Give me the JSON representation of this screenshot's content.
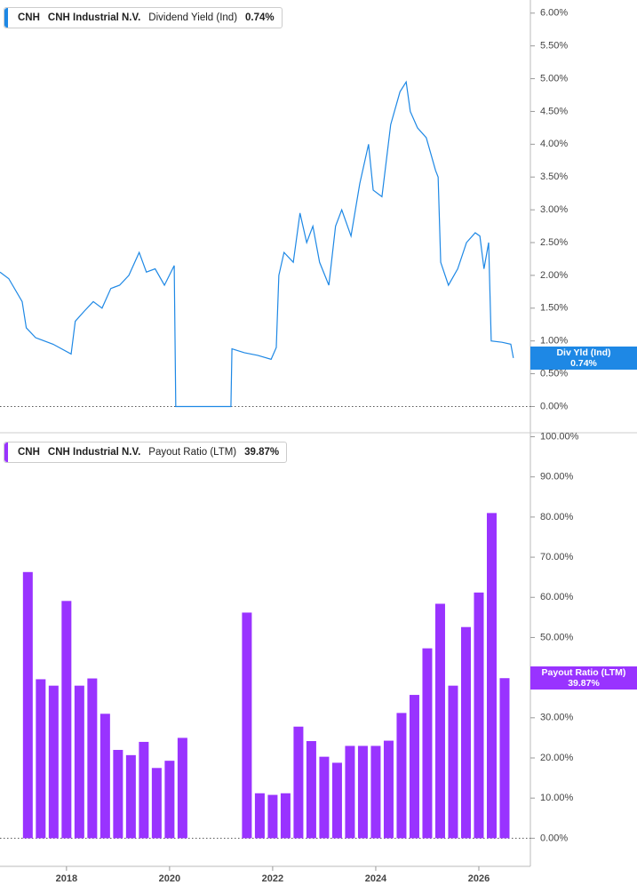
{
  "chart_data": [
    {
      "type": "line",
      "color": "#1e88e5",
      "legend": {
        "ticker": "CNH",
        "name": "CNH Industrial N.V.",
        "metric": "Dividend Yield (Ind)"
      },
      "tag": "Div Yld (Ind)",
      "current": {
        "value": 0.74,
        "label": "0.74%"
      },
      "x": [
        2016.71,
        2016.88,
        2017.14,
        2017.22,
        2017.4,
        2017.74,
        2018.09,
        2018.17,
        2018.34,
        2018.52,
        2018.69,
        2018.86,
        2019.03,
        2019.21,
        2019.41,
        2019.55,
        2019.72,
        2019.9,
        2020.09,
        2020.12,
        2021.19,
        2021.21,
        2021.45,
        2021.71,
        2021.97,
        2022.07,
        2022.12,
        2022.22,
        2022.4,
        2022.53,
        2022.66,
        2022.78,
        2022.91,
        2023.09,
        2023.22,
        2023.34,
        2023.52,
        2023.69,
        2023.86,
        2023.95,
        2024.12,
        2024.29,
        2024.47,
        2024.59,
        2024.67,
        2024.81,
        2024.98,
        2025.16,
        2025.21,
        2025.26,
        2025.41,
        2025.59,
        2025.76,
        2025.93,
        2026.02,
        2026.1,
        2026.19,
        2026.24,
        2026.45,
        2026.62,
        2026.67
      ],
      "values": [
        2.05,
        1.95,
        1.6,
        1.2,
        1.05,
        0.95,
        0.8,
        1.3,
        1.45,
        1.6,
        1.5,
        1.8,
        1.85,
        2.0,
        2.35,
        2.05,
        2.1,
        1.85,
        2.15,
        0.0,
        0.0,
        0.88,
        0.82,
        0.78,
        0.72,
        0.9,
        2.0,
        2.35,
        2.2,
        2.95,
        2.5,
        2.75,
        2.2,
        1.85,
        2.75,
        3.0,
        2.6,
        3.4,
        4.0,
        3.3,
        3.2,
        4.3,
        4.8,
        4.95,
        4.5,
        4.25,
        4.1,
        3.6,
        3.5,
        2.2,
        1.85,
        2.1,
        2.5,
        2.65,
        2.6,
        2.1,
        2.5,
        1.0,
        0.98,
        0.95,
        0.74
      ],
      "xlim": [
        2016.71,
        2027.0
      ],
      "ylim": [
        -0.4,
        6.2
      ],
      "yticks": [
        {
          "value": 0,
          "label": "0.00%"
        },
        {
          "value": 0.5,
          "label": "0.50%"
        },
        {
          "value": 1,
          "label": "1.00%"
        },
        {
          "value": 1.5,
          "label": "1.50%"
        },
        {
          "value": 2,
          "label": "2.00%"
        },
        {
          "value": 2.5,
          "label": "2.50%"
        },
        {
          "value": 3,
          "label": "3.00%"
        },
        {
          "value": 3.5,
          "label": "3.50%"
        },
        {
          "value": 4,
          "label": "4.00%"
        },
        {
          "value": 4.5,
          "label": "4.50%"
        },
        {
          "value": 5,
          "label": "5.00%"
        },
        {
          "value": 5.5,
          "label": "5.50%"
        },
        {
          "value": 6,
          "label": "6.00%"
        }
      ]
    },
    {
      "type": "bar",
      "color": "#9933ff",
      "legend": {
        "ticker": "CNH",
        "name": "CNH Industrial N.V.",
        "metric": "Payout Ratio (LTM)"
      },
      "tag": "Payout Ratio (LTM)",
      "current": {
        "value": 39.87,
        "label": "39.87%"
      },
      "x": [
        2017.25,
        2017.5,
        2017.75,
        2018.0,
        2018.25,
        2018.5,
        2018.75,
        2019.0,
        2019.25,
        2019.5,
        2019.75,
        2020.0,
        2020.25,
        2021.5,
        2021.75,
        2022.0,
        2022.25,
        2022.5,
        2022.75,
        2023.0,
        2023.25,
        2023.5,
        2023.75,
        2024.0,
        2024.25,
        2024.5,
        2024.75,
        2025.0,
        2025.25,
        2025.5,
        2025.75,
        2026.0,
        2026.25,
        2026.5
      ],
      "values": [
        66.3,
        39.6,
        38.0,
        59.1,
        38.0,
        39.8,
        31.0,
        22.0,
        20.7,
        24.0,
        17.5,
        19.3,
        25.0,
        56.2,
        11.2,
        10.8,
        11.2,
        27.8,
        24.2,
        20.3,
        18.8,
        23.0,
        23.0,
        23.0,
        24.3,
        31.2,
        35.7,
        47.3,
        58.4,
        38.0,
        52.6,
        61.2,
        81.0,
        39.87
      ],
      "xlim": [
        2016.71,
        2027.0
      ],
      "xticks": [
        2018,
        2020,
        2022,
        2024,
        2026
      ],
      "ylim": [
        -7,
        101
      ],
      "yticks": [
        {
          "value": 0,
          "label": "0.00%"
        },
        {
          "value": 10,
          "label": "10.00%"
        },
        {
          "value": 20,
          "label": "20.00%"
        },
        {
          "value": 30,
          "label": "30.00%"
        },
        {
          "value": 40,
          "label": "40.00%"
        },
        {
          "value": 50,
          "label": "50.00%"
        },
        {
          "value": 60,
          "label": "60.00%"
        },
        {
          "value": 70,
          "label": "70.00%"
        },
        {
          "value": 80,
          "label": "80.00%"
        },
        {
          "value": 90,
          "label": "90.00%"
        },
        {
          "value": 100,
          "label": "100.00%"
        }
      ]
    }
  ]
}
